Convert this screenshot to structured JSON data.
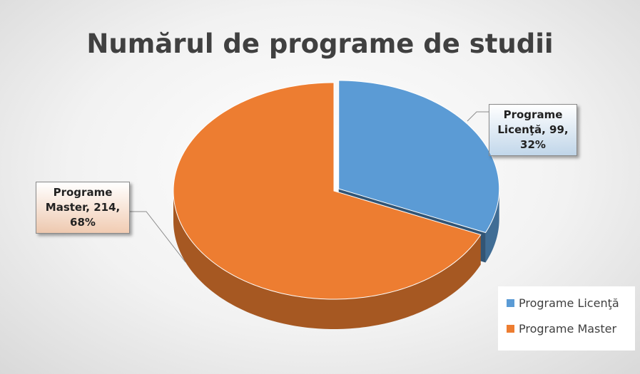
{
  "chart_data": {
    "type": "pie",
    "title": "Numărul de programe de studii",
    "categories": [
      "Programe Licenţă",
      "Programe Master"
    ],
    "values": [
      99,
      214
    ],
    "value_labels": [
      "Programe Licenţă, 99, 32%",
      "Programe Master, 214, 68%"
    ],
    "colors": [
      "#5b9bd5",
      "#ed7d31"
    ],
    "legend": "bottom-right"
  }
}
